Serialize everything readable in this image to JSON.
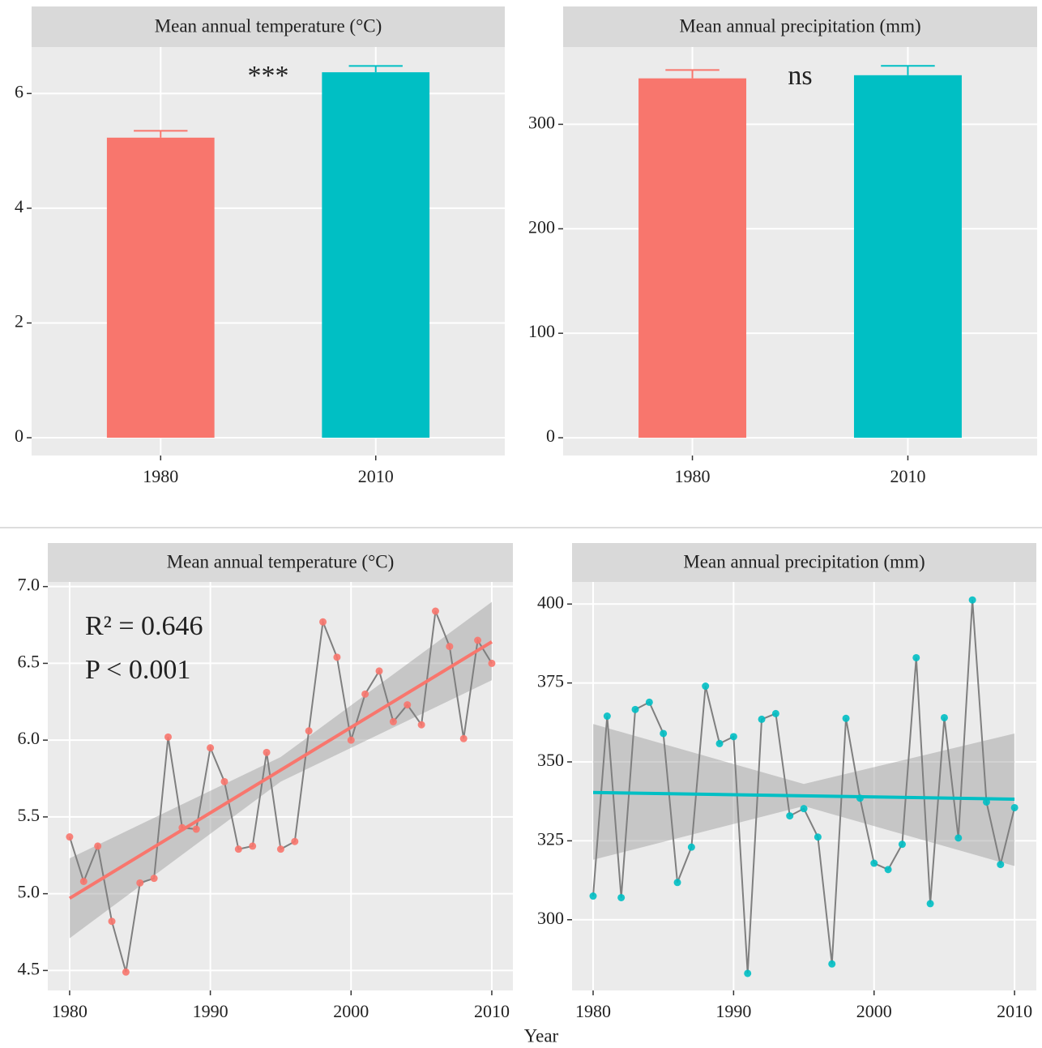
{
  "chart_data": [
    {
      "type": "bar",
      "title": "Mean annual temperature (°C)",
      "categories": [
        "1980",
        "2010"
      ],
      "values": [
        5.23,
        6.37
      ],
      "errors": [
        0.12,
        0.11
      ],
      "colors": [
        "#F8766D",
        "#00BFC4"
      ],
      "ylim": [
        -0.31,
        6.81
      ],
      "yticks": [
        0,
        2,
        4,
        6
      ],
      "annotation": "***",
      "grid": true
    },
    {
      "type": "bar",
      "title": "Mean annual precipitation (mm)",
      "categories": [
        "1980",
        "2010"
      ],
      "values": [
        344,
        347
      ],
      "errors": [
        8,
        9
      ],
      "colors": [
        "#F8766D",
        "#00BFC4"
      ],
      "ylim": [
        -17,
        374
      ],
      "yticks": [
        0,
        100,
        200,
        300
      ],
      "annotation": "ns",
      "grid": true
    },
    {
      "type": "line",
      "title": "Mean annual temperature (°C)",
      "x": [
        1980,
        1981,
        1982,
        1983,
        1984,
        1985,
        1986,
        1987,
        1988,
        1989,
        1990,
        1991,
        1992,
        1993,
        1994,
        1995,
        1996,
        1997,
        1998,
        1999,
        2000,
        2001,
        2002,
        2003,
        2004,
        2005,
        2006,
        2007,
        2008,
        2009,
        2010
      ],
      "values": [
        5.37,
        5.08,
        5.31,
        4.82,
        4.49,
        5.07,
        5.1,
        6.02,
        5.43,
        5.42,
        5.95,
        5.73,
        5.29,
        5.31,
        5.92,
        5.29,
        5.34,
        6.06,
        6.77,
        6.54,
        6.0,
        6.3,
        6.45,
        6.12,
        6.23,
        6.1,
        6.84,
        6.61,
        6.01,
        6.65,
        6.5
      ],
      "color": "#F8766D",
      "line_color": "#7F7F7F",
      "trend": {
        "x": [
          1980,
          2010
        ],
        "values": [
          4.97,
          6.64
        ],
        "color": "#F8766D"
      },
      "band": {
        "x": [
          1980,
          1995,
          2010
        ],
        "lower": [
          4.71,
          5.73,
          6.39
        ],
        "upper": [
          5.23,
          5.89,
          6.9
        ]
      },
      "xlim": [
        1978.45,
        2011.5
      ],
      "xticks": [
        1980,
        1990,
        2000,
        2010
      ],
      "ylim": [
        4.37,
        7.03
      ],
      "yticks": [
        4.5,
        {
          "value": 5,
          "label": "5.0"
        },
        5.5,
        {
          "value": 6,
          "label": "6.0"
        },
        6.5,
        {
          "value": 7,
          "label": "7.0"
        }
      ],
      "annotations": [
        "R² = 0.646",
        "P < 0.001"
      ],
      "grid": true
    },
    {
      "type": "line",
      "title": "Mean annual precipitation (mm)",
      "x": [
        1980,
        1981,
        1982,
        1983,
        1984,
        1985,
        1986,
        1987,
        1988,
        1989,
        1990,
        1991,
        1992,
        1993,
        1994,
        1995,
        1996,
        1997,
        1998,
        1999,
        2000,
        2001,
        2002,
        2003,
        2004,
        2005,
        2006,
        2007,
        2008,
        2009,
        2010
      ],
      "values": [
        307.5,
        364.5,
        307,
        366.6,
        368.9,
        359,
        311.8,
        323,
        374,
        355.8,
        358,
        283,
        363.5,
        365.3,
        332.9,
        335.2,
        326.2,
        286,
        363.8,
        338.5,
        317.9,
        315.9,
        323.9,
        383,
        305.1,
        364,
        325.9,
        401.3,
        337.3,
        317.5,
        335.5
      ],
      "color": "#00BFC4",
      "line_color": "#7F7F7F",
      "trend": {
        "x": [
          1980,
          2010
        ],
        "values": [
          340.3,
          338.2
        ],
        "color": "#00BFC4"
      },
      "band": {
        "x": [
          1980,
          1995,
          2010
        ],
        "lower": [
          319,
          336,
          317
        ],
        "upper": [
          362,
          343,
          359
        ]
      },
      "xlim": [
        1978.5,
        2011.55
      ],
      "xticks": [
        1980,
        1990,
        2000,
        2010
      ],
      "ylim": [
        277.6,
        407
      ],
      "yticks": [
        300,
        325,
        350,
        375,
        400
      ],
      "grid": true
    }
  ],
  "x_label": "Year"
}
